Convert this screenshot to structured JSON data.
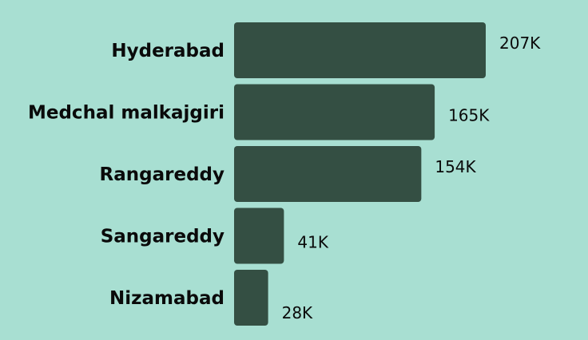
{
  "colors": {
    "background": "#a8dfd2",
    "bar": "#344f43",
    "text": "#0a0a0a"
  },
  "chart_data": {
    "type": "bar",
    "orientation": "horizontal",
    "categories": [
      "Hyderabad",
      "Medchal malkajgiri",
      "Rangareddy",
      "Sangareddy",
      "Nizamabad"
    ],
    "values": [
      207000,
      165000,
      154000,
      41000,
      28000
    ],
    "value_labels": [
      "207K",
      "165K",
      "154K",
      "41K",
      "28K"
    ],
    "title": "",
    "xlabel": "",
    "ylabel": "",
    "xlim": [
      0,
      207000
    ],
    "grid": false,
    "legend": "none"
  }
}
